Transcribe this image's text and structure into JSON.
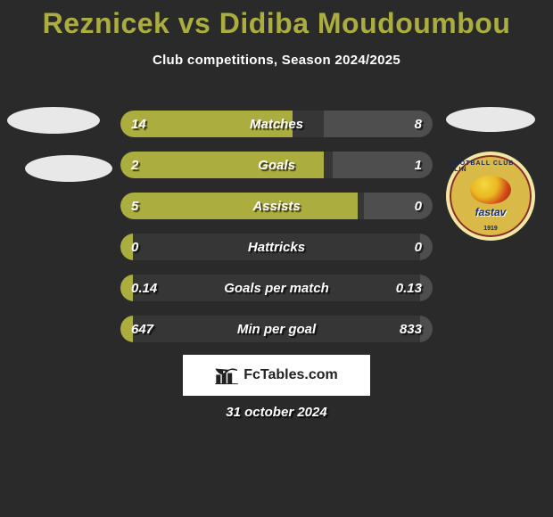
{
  "colors": {
    "background": "#2a2a2a",
    "accent": "#abad3f",
    "bar_bg": "rgba(255,255,255,0.06)",
    "bar_right": "rgba(255,255,255,0.12)",
    "text": "#ffffff",
    "badge_bg": "#ffffff"
  },
  "title": "Reznicek vs Didiba Moudoumbou",
  "subtitle": "Club competitions, Season 2024/2025",
  "date": "31 october 2024",
  "fctables": {
    "brand": "FcTables.com"
  },
  "club_right": {
    "top_text": "FOOTBALL CLUB ZLIN",
    "brand": "fastav",
    "year": "1919"
  },
  "stats": [
    {
      "label": "Matches",
      "left_val": "14",
      "right_val": "8",
      "left_pct": 55,
      "right_pct": 35
    },
    {
      "label": "Goals",
      "left_val": "2",
      "right_val": "1",
      "left_pct": 65,
      "right_pct": 32
    },
    {
      "label": "Assists",
      "left_val": "5",
      "right_val": "0",
      "left_pct": 76,
      "right_pct": 22
    },
    {
      "label": "Hattricks",
      "left_val": "0",
      "right_val": "0",
      "left_pct": 4,
      "right_pct": 4
    },
    {
      "label": "Goals per match",
      "left_val": "0.14",
      "right_val": "0.13",
      "left_pct": 4,
      "right_pct": 4
    },
    {
      "label": "Min per goal",
      "left_val": "647",
      "right_val": "833",
      "left_pct": 4,
      "right_pct": 4
    }
  ]
}
